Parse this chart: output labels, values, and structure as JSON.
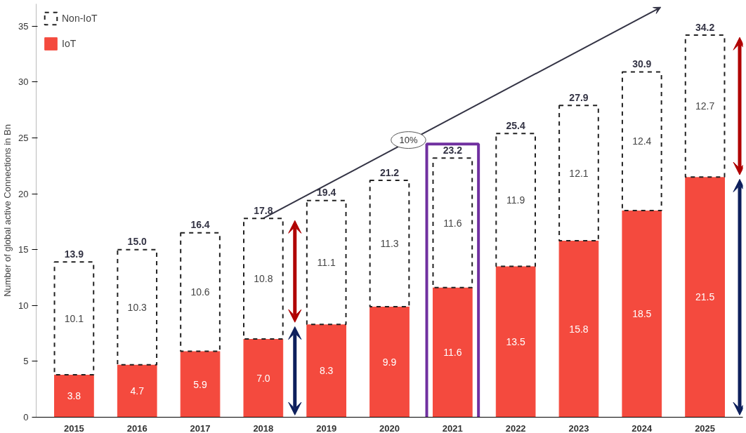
{
  "chart_data": {
    "type": "bar",
    "stacked": true,
    "ylabel": "Number of global active Connections in Bn",
    "categories": [
      "2015",
      "2016",
      "2017",
      "2018",
      "2019",
      "2020",
      "2021",
      "2022",
      "2023",
      "2024",
      "2025"
    ],
    "series": [
      {
        "name": "IoT",
        "color": "#f44a3e",
        "values": [
          3.8,
          4.7,
          5.9,
          7.0,
          8.3,
          9.9,
          11.6,
          13.5,
          15.8,
          18.5,
          21.5
        ],
        "value_labels": [
          "3.8",
          "4.7",
          "5.9",
          "7.0",
          "8.3",
          "9.9",
          "11.6",
          "13.5",
          "15.8",
          "18.5",
          "21.5"
        ]
      },
      {
        "name": "Non-IoT",
        "color": "#ffffff",
        "line_style": "dashed",
        "values": [
          10.1,
          10.3,
          10.6,
          10.8,
          11.1,
          11.3,
          11.6,
          11.9,
          12.1,
          12.4,
          12.7
        ],
        "value_labels": [
          "10.1",
          "10.3",
          "10.6",
          "10.8",
          "11.1",
          "11.3",
          "11.6",
          "11.9",
          "12.1",
          "12.4",
          "12.7"
        ]
      }
    ],
    "totals": [
      "13.9",
      "15.0",
      "16.4",
      "17.8",
      "19.4",
      "21.2",
      "23.2",
      "25.4",
      "27.9",
      "30.9",
      "34.2"
    ],
    "annotations": [
      "10%"
    ],
    "ylim": [
      0,
      37
    ],
    "yticks": [
      0,
      5,
      10,
      15,
      20,
      25,
      30,
      35
    ],
    "grid": false,
    "legend": "top left"
  }
}
